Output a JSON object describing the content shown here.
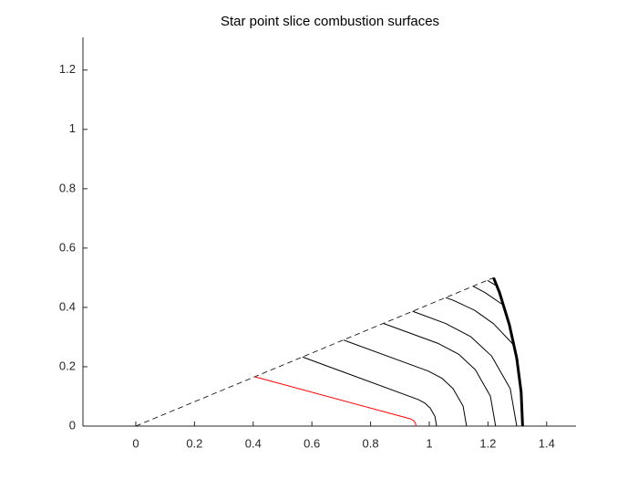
{
  "chart_data": {
    "type": "line",
    "title": "Star point slice combustion surfaces",
    "xlim": [
      -0.18,
      1.5
    ],
    "ylim": [
      0,
      1.31
    ],
    "xticks": [
      0,
      0.2,
      0.4,
      0.6,
      0.8,
      1,
      1.2,
      1.4
    ],
    "yticks": [
      0,
      0.2,
      0.4,
      0.6,
      0.8,
      1,
      1.2
    ],
    "series": [
      {
        "color": "#000000",
        "dash": true,
        "width": 0.8,
        "x": [
          0,
          1.219
        ],
        "y": [
          0,
          0.5
        ]
      },
      {
        "color": "#000000",
        "dash": false,
        "width": 3,
        "x": [
          1.318,
          1.313,
          1.298,
          1.273,
          1.239,
          1.219
        ],
        "y": [
          0,
          0.115,
          0.229,
          0.341,
          0.451,
          0.5
        ]
      },
      {
        "color": "#ff0000",
        "dash": false,
        "width": 1,
        "x": [
          0.406,
          0.9365,
          0.9461,
          0.9527,
          0.955
        ],
        "y": [
          0.166,
          0.0242,
          0.0192,
          0.0106,
          0
        ]
      },
      {
        "color": "#000000",
        "dash": false,
        "width": 1,
        "x": [
          0.568,
          0.9625,
          0.9845,
          1.0028,
          1.0193,
          1.025
        ],
        "y": [
          0.233,
          0.0893,
          0.0778,
          0.0611,
          0.0325,
          0
        ]
      },
      {
        "color": "#000000",
        "dash": false,
        "width": 1,
        "x": [
          0.708,
          0.9974,
          1.0431,
          1.0809,
          1.1152,
          1.127
        ],
        "y": [
          0.29,
          0.1851,
          0.1613,
          0.1266,
          0.0674,
          0
        ]
      },
      {
        "color": "#000000",
        "dash": false,
        "width": 1,
        "x": [
          0.844,
          1.0312,
          1.0999,
          1.1567,
          1.2082,
          1.226
        ],
        "y": [
          0.346,
          0.2782,
          0.2424,
          0.1903,
          0.1012,
          0
        ]
      },
      {
        "color": "#000000",
        "dash": false,
        "width": 1,
        "x": [
          0.943,
          1.0559,
          1.1412,
          1.2119,
          1.2759,
          1.298
        ],
        "y": [
          0.387,
          0.3458,
          0.3014,
          0.2366,
          0.1259,
          0
        ]
      },
      {
        "color": "#000000",
        "dash": false,
        "width": 1,
        "x": [
          1.056,
          1.084,
          1.155,
          1.219,
          1.29
        ],
        "y": [
          0.433,
          0.423,
          0.39,
          0.345,
          0.271
        ]
      },
      {
        "color": "#000000",
        "dash": false,
        "width": 1,
        "x": [
          1.15,
          1.19,
          1.2535
        ],
        "y": [
          0.471,
          0.45,
          0.407
        ]
      },
      {
        "color": "#000000",
        "dash": false,
        "width": 1,
        "x": [
          1.1985,
          1.2304
        ],
        "y": [
          0.491,
          0.472
        ]
      }
    ]
  }
}
